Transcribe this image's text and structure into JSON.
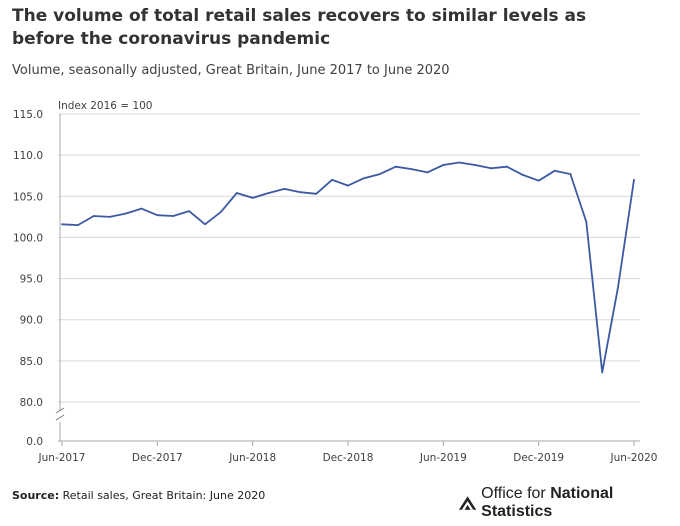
{
  "title": "The volume of total retail sales recovers to similar levels as before the coronavirus pandemic",
  "subtitle": "Volume, seasonally adjusted, Great Britain, June 2017 to June 2020",
  "source_label": "Source:",
  "source_text": "Retail sales, Great Britain: June 2020",
  "logo": {
    "prefix": "Office for ",
    "bold": "National Statistics"
  },
  "chart_data": {
    "type": "line",
    "unit_label": "Index 2016 = 100",
    "x": [
      "Jun-2017",
      "Jul-2017",
      "Aug-2017",
      "Sep-2017",
      "Oct-2017",
      "Nov-2017",
      "Dec-2017",
      "Jan-2018",
      "Feb-2018",
      "Mar-2018",
      "Apr-2018",
      "May-2018",
      "Jun-2018",
      "Jul-2018",
      "Aug-2018",
      "Sep-2018",
      "Oct-2018",
      "Nov-2018",
      "Dec-2018",
      "Jan-2019",
      "Feb-2019",
      "Mar-2019",
      "Apr-2019",
      "May-2019",
      "Jun-2019",
      "Jul-2019",
      "Aug-2019",
      "Sep-2019",
      "Oct-2019",
      "Nov-2019",
      "Dec-2019",
      "Jan-2020",
      "Feb-2020",
      "Mar-2020",
      "Apr-2020",
      "May-2020",
      "Jun-2020"
    ],
    "series": [
      {
        "name": "Retail sales volume",
        "color": "#3b5aa2",
        "values": [
          101.6,
          101.5,
          102.6,
          102.5,
          102.9,
          103.5,
          102.7,
          102.6,
          103.2,
          101.6,
          103.1,
          105.4,
          104.8,
          105.4,
          105.9,
          105.5,
          105.3,
          107.0,
          106.3,
          107.2,
          107.7,
          108.6,
          108.3,
          107.9,
          108.8,
          109.1,
          108.8,
          108.4,
          108.6,
          107.6,
          106.9,
          108.1,
          107.7,
          101.9,
          83.6,
          94.0,
          107.0
        ]
      }
    ],
    "xticks": [
      "Jun-2017",
      "Dec-2017",
      "Jun-2018",
      "Dec-2018",
      "Jun-2019",
      "Dec-2019",
      "Jun-2020"
    ],
    "xtick_index": [
      0,
      6,
      12,
      18,
      24,
      30,
      36
    ],
    "yticks": [
      "115.0",
      "110.0",
      "105.0",
      "100.0",
      "95.0",
      "90.0",
      "85.0",
      "80.0",
      "0.0"
    ],
    "ytick_values": [
      115,
      110,
      105,
      100,
      95,
      90,
      85,
      80,
      0
    ],
    "ylim": [
      80,
      115
    ],
    "axis_break": true,
    "grid": true,
    "grid_color": "#d9d9d9"
  }
}
